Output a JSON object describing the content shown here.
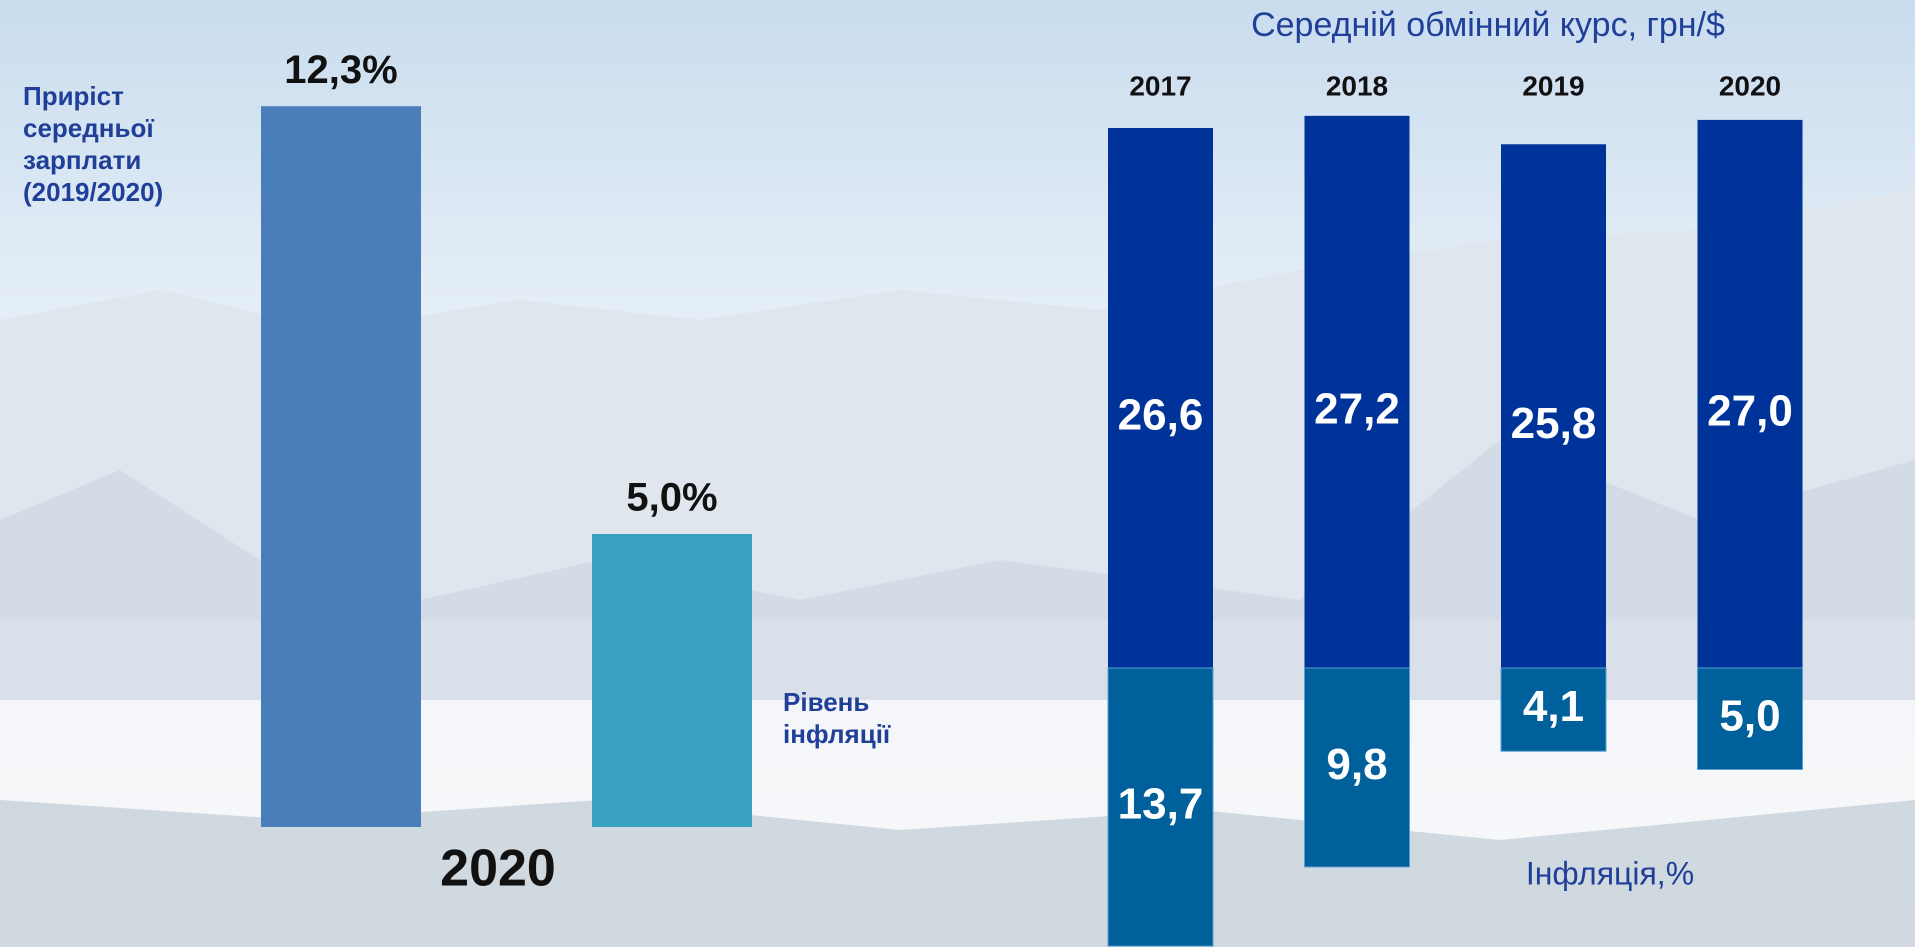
{
  "chart_data": [
    {
      "type": "bar",
      "x_label": "2020",
      "categories": [
        "Приріст середньої зарплати (2019/2020)",
        "Рівень інфляції"
      ],
      "values": [
        12.3,
        5.0
      ],
      "value_labels": [
        "12,3%",
        "5,0%"
      ],
      "colors": [
        "#4a7ebb",
        "#3aa2c1"
      ]
    },
    {
      "type": "diverging-bar",
      "categories": [
        "2017",
        "2018",
        "2019",
        "2020"
      ],
      "series": [
        {
          "name": "Середній обмінний курс, грн/$",
          "color": "#003399",
          "values": [
            26.6,
            27.2,
            25.8,
            27.0
          ],
          "value_labels": [
            "26,6",
            "27,2",
            "25,8",
            "27,0"
          ]
        },
        {
          "name": "Інфляція,%",
          "color": "#00609c",
          "values": [
            13.7,
            9.8,
            4.1,
            5.0
          ],
          "value_labels": [
            "13,7",
            "9,8",
            "4,1",
            "5,0"
          ]
        }
      ]
    }
  ]
}
